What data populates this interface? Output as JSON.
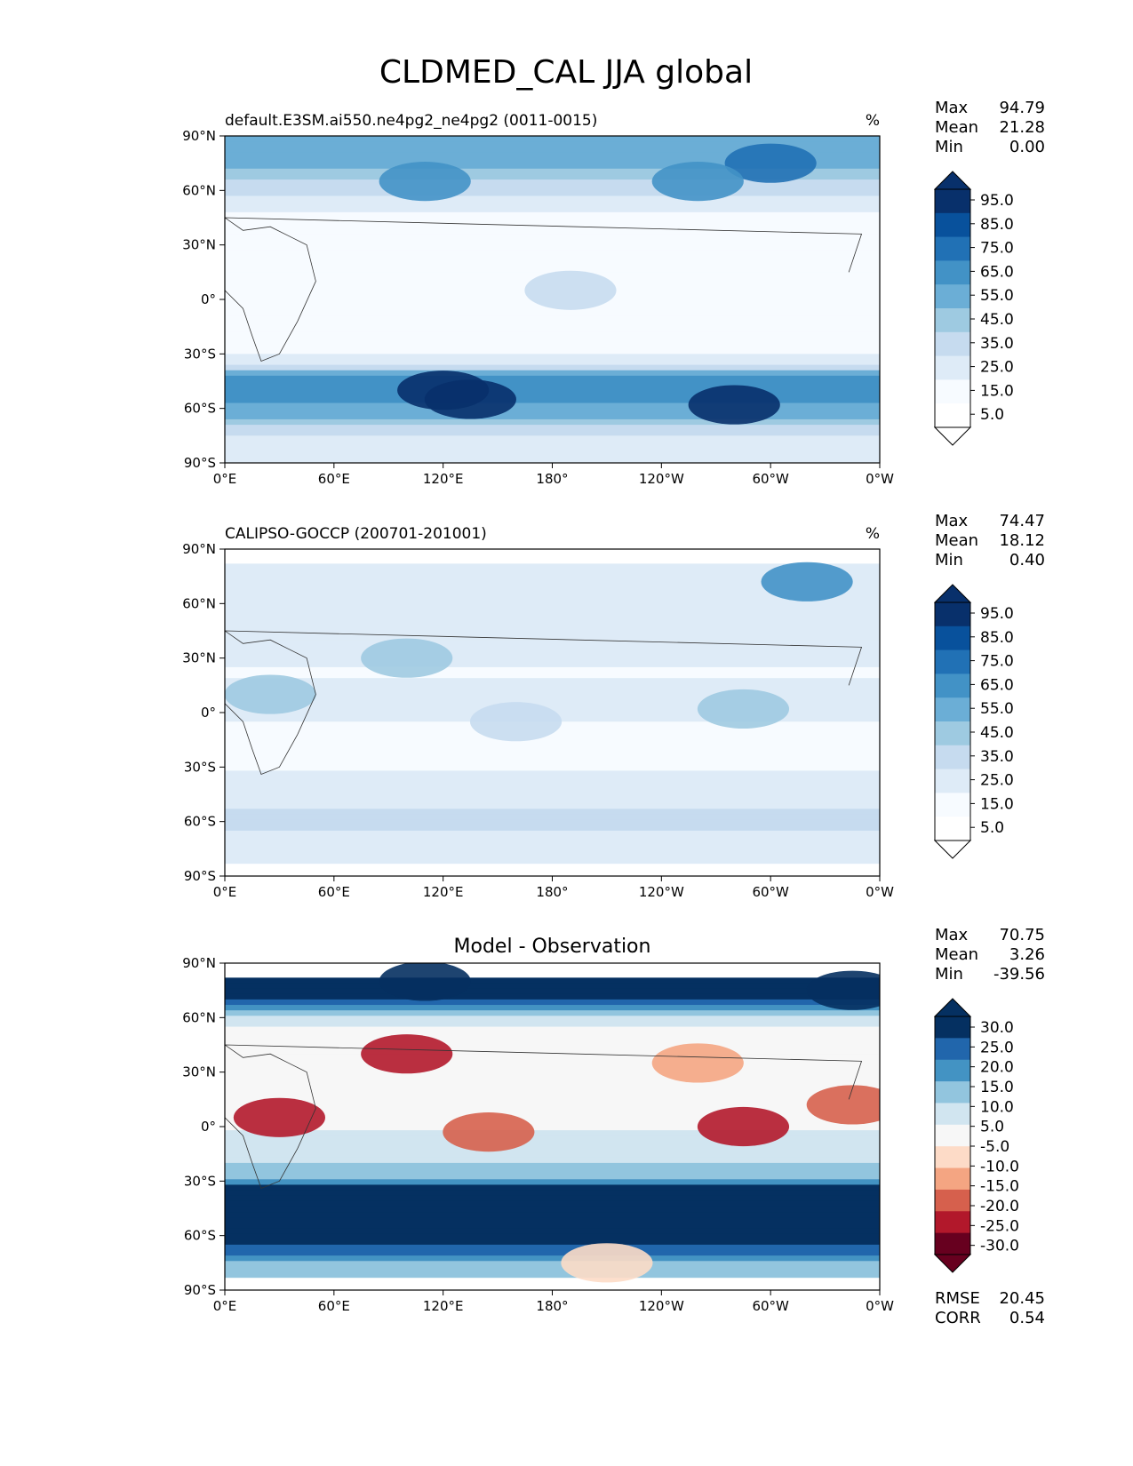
{
  "figure_title": "CLDMED_CAL JJA global",
  "colors": {
    "cbar_abs": [
      "#ffffff",
      "#f7fbff",
      "#deebf7",
      "#c6dbef",
      "#9ecae1",
      "#6baed6",
      "#4292c6",
      "#2171b5",
      "#08519c",
      "#08306b"
    ],
    "cbar_diff": [
      "#67001f",
      "#b2182b",
      "#d6604d",
      "#f4a582",
      "#fddbc7",
      "#f7f7f7",
      "#d1e5f0",
      "#92c5de",
      "#4393c3",
      "#2166ac",
      "#053061"
    ]
  },
  "chart_data": [
    {
      "type": "heatmap",
      "kind": "absolute",
      "title_left": "default.E3SM.ai550.ne4pg2_ne4pg2 (0011-0015)",
      "title_center": "",
      "units": "%",
      "stats": [
        {
          "label": "Max",
          "value": "94.79"
        },
        {
          "label": "Mean",
          "value": "21.28"
        },
        {
          "label": "Min",
          "value": "0.00"
        }
      ],
      "extra_stats": [],
      "colorbar_ticks": [
        "95.0",
        "85.0",
        "75.0",
        "65.0",
        "55.0",
        "45.0",
        "35.0",
        "25.0",
        "15.0",
        "5.0"
      ],
      "xticks": [
        "0°E",
        "60°E",
        "120°E",
        "180°",
        "120°W",
        "60°W",
        "0°W"
      ],
      "yticks": [
        "90°N",
        "60°N",
        "30°N",
        "0°",
        "30°S",
        "60°S",
        "90°S"
      ],
      "lat_extent": [
        -90,
        90
      ],
      "zonal_profile": [
        {
          "lat": 90,
          "value": 55
        },
        {
          "lat": 75,
          "value": 48
        },
        {
          "lat": 62,
          "value": 30
        },
        {
          "lat": 50,
          "value": 16
        },
        {
          "lat": 35,
          "value": 10
        },
        {
          "lat": 20,
          "value": 7
        },
        {
          "lat": 5,
          "value": 9
        },
        {
          "lat": -10,
          "value": 7
        },
        {
          "lat": -25,
          "value": 9
        },
        {
          "lat": -35,
          "value": 25
        },
        {
          "lat": -45,
          "value": 62
        },
        {
          "lat": -55,
          "value": 60
        },
        {
          "lat": -65,
          "value": 45
        },
        {
          "lat": -75,
          "value": 25
        },
        {
          "lat": -90,
          "value": 20
        }
      ],
      "blobs": [
        {
          "lon": 120,
          "lat": -50,
          "value": 95
        },
        {
          "lon": 135,
          "lat": -55,
          "value": 90
        },
        {
          "lon": 280,
          "lat": -58,
          "value": 90
        },
        {
          "lon": 110,
          "lat": 65,
          "value": 55
        },
        {
          "lon": 300,
          "lat": 75,
          "value": 65
        },
        {
          "lon": 260,
          "lat": 65,
          "value": 55
        },
        {
          "lon": 190,
          "lat": 5,
          "value": 25
        }
      ]
    },
    {
      "type": "heatmap",
      "kind": "absolute",
      "title_left": "CALIPSO-GOCCP (200701-201001)",
      "title_center": "",
      "units": "%",
      "stats": [
        {
          "label": "Max",
          "value": "74.47"
        },
        {
          "label": "Mean",
          "value": "18.12"
        },
        {
          "label": "Min",
          "value": "0.40"
        }
      ],
      "extra_stats": [],
      "colorbar_ticks": [
        "95.0",
        "85.0",
        "75.0",
        "65.0",
        "55.0",
        "45.0",
        "35.0",
        "25.0",
        "15.0",
        "5.0"
      ],
      "xticks": [
        "0°E",
        "60°E",
        "120°E",
        "180°",
        "120°W",
        "60°W",
        "0°W"
      ],
      "yticks": [
        "90°N",
        "60°N",
        "30°N",
        "0°",
        "30°S",
        "60°S",
        "90°S"
      ],
      "lat_extent": [
        -82,
        82
      ],
      "zonal_profile": [
        {
          "lat": 82,
          "value": 22
        },
        {
          "lat": 60,
          "value": 24
        },
        {
          "lat": 40,
          "value": 18
        },
        {
          "lat": 20,
          "value": 14
        },
        {
          "lat": 5,
          "value": 20
        },
        {
          "lat": -15,
          "value": 10
        },
        {
          "lat": -30,
          "value": 14
        },
        {
          "lat": -45,
          "value": 24
        },
        {
          "lat": -60,
          "value": 26
        },
        {
          "lat": -82,
          "value": 20
        }
      ],
      "blobs": [
        {
          "lon": 320,
          "lat": 72,
          "value": 60
        },
        {
          "lon": 100,
          "lat": 30,
          "value": 38
        },
        {
          "lon": 25,
          "lat": 10,
          "value": 35
        },
        {
          "lon": 285,
          "lat": 2,
          "value": 40
        },
        {
          "lon": 160,
          "lat": -5,
          "value": 30
        }
      ]
    },
    {
      "type": "heatmap",
      "kind": "difference",
      "title_left": "",
      "title_center": "Model - Observation",
      "units": "",
      "stats": [
        {
          "label": "Max",
          "value": "70.75"
        },
        {
          "label": "Mean",
          "value": "3.26"
        },
        {
          "label": "Min",
          "value": "-39.56"
        }
      ],
      "extra_stats": [
        {
          "label": "RMSE",
          "value": "20.45"
        },
        {
          "label": "CORR",
          "value": "0.54"
        }
      ],
      "colorbar_ticks": [
        "30.0",
        "25.0",
        "20.0",
        "15.0",
        "10.0",
        "5.0",
        "-5.0",
        "-10.0",
        "-15.0",
        "-20.0",
        "-25.0",
        "-30.0"
      ],
      "xticks": [
        "0°E",
        "60°E",
        "120°E",
        "180°",
        "120°W",
        "60°W",
        "0°W"
      ],
      "yticks": [
        "90°N",
        "60°N",
        "30°N",
        "0°",
        "30°S",
        "60°S",
        "90°S"
      ],
      "lat_extent": [
        -82,
        82
      ],
      "zonal_profile": [
        {
          "lat": 82,
          "value": 28
        },
        {
          "lat": 70,
          "value": 20
        },
        {
          "lat": 55,
          "value": -5
        },
        {
          "lat": 40,
          "value": -10
        },
        {
          "lat": 25,
          "value": -6
        },
        {
          "lat": 10,
          "value": -10
        },
        {
          "lat": 0,
          "value": -6
        },
        {
          "lat": -15,
          "value": 2
        },
        {
          "lat": -28,
          "value": 8
        },
        {
          "lat": -40,
          "value": 35
        },
        {
          "lat": -55,
          "value": 32
        },
        {
          "lat": -65,
          "value": 22
        },
        {
          "lat": -75,
          "value": 8
        },
        {
          "lat": -82,
          "value": 5
        }
      ],
      "blobs": [
        {
          "lon": 30,
          "lat": 5,
          "value": -30
        },
        {
          "lon": 100,
          "lat": 40,
          "value": -28
        },
        {
          "lon": 285,
          "lat": 0,
          "value": -30
        },
        {
          "lon": 345,
          "lat": 12,
          "value": -25
        },
        {
          "lon": 145,
          "lat": -3,
          "value": -22
        },
        {
          "lon": 260,
          "lat": 35,
          "value": -18
        },
        {
          "lon": 210,
          "lat": -75,
          "value": -14
        },
        {
          "lon": 110,
          "lat": 80,
          "value": 30
        },
        {
          "lon": 345,
          "lat": 75,
          "value": 32
        }
      ]
    }
  ]
}
